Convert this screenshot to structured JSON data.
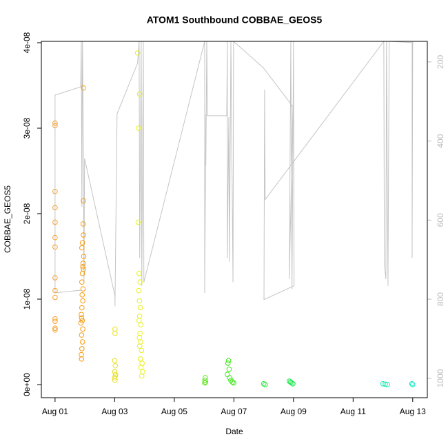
{
  "chart_data": {
    "type": "scatter",
    "title": "ATOM1 Southbound COBBAE_GEOS5",
    "xlabel": "Date",
    "ylabel": "COBBAE_GEOS5",
    "xlim": [
      0.54,
      13.49
    ],
    "xticks": [
      {
        "value": 1,
        "label": "Aug 01"
      },
      {
        "value": 3,
        "label": "Aug 03"
      },
      {
        "value": 5,
        "label": "Aug 05"
      },
      {
        "value": 7,
        "label": "Aug 07"
      },
      {
        "value": 9,
        "label": "Aug 09"
      },
      {
        "value": 11,
        "label": "Aug 11"
      },
      {
        "value": 13,
        "label": "Aug 13"
      }
    ],
    "ylim": [
      -1.53e-09,
      4.016e-08
    ],
    "yticks": [
      {
        "value": 0,
        "label": "0e+00"
      },
      {
        "value": 1e-08,
        "label": "1e-08"
      },
      {
        "value": 2e-08,
        "label": "2e-08"
      },
      {
        "value": 3e-08,
        "label": "3e-08"
      },
      {
        "value": 4e-08,
        "label": "4e-08"
      }
    ],
    "y2lim": [
      1049,
      148
    ],
    "y2ticks": [
      200,
      400,
      600,
      800,
      1000
    ],
    "series": [
      {
        "type": "line",
        "axis": "y2",
        "color": "#c4c4c4",
        "x": [
          1.88,
          1.0,
          1.0,
          1.86,
          1.88,
          1.9,
          1.92,
          1.95,
          1.97,
          1.99,
          3.01,
          3.01,
          3.08,
          3.77,
          3.82,
          3.84,
          3.89,
          3.91,
          3.96,
          3.98,
          6.02,
          6.02,
          6.06,
          6.06,
          6.09,
          6.11,
          6.76,
          6.78,
          6.78,
          6.83,
          6.85,
          6.9,
          6.97,
          6.99,
          7.98,
          8.98,
          8.86,
          8.91,
          8.95,
          9.0,
          9.02,
          8.01,
          8.03,
          8.05,
          12.03,
          12.05,
          12.1,
          12.12,
          12.17,
          12.21,
          12.98,
          12.98,
          13.0
        ],
        "values": [
          777,
          784,
          284,
          263,
          148,
          566,
          148,
          418,
          757,
          444,
          792,
          818,
          331,
          203,
          148,
          696,
          148,
          766,
          148,
          757,
          148,
          784,
          331,
          461,
          148,
          336,
          336,
          148,
          696,
          339,
          705,
          148,
          757,
          148,
          214,
          313,
          749,
          148,
          775,
          148,
          766,
          801,
          270,
          548,
          148,
          714,
          749,
          148,
          766,
          148,
          151,
          696,
          148
        ]
      },
      {
        "color": "#f5a030",
        "x": [
          1,
          1,
          1,
          1,
          1,
          1,
          1,
          1,
          1,
          1,
          1,
          1,
          1,
          1
        ],
        "values": [
          3.06e-08,
          3.03e-08,
          2.26e-08,
          2.07e-08,
          1.9e-08,
          1.72e-08,
          1.61e-08,
          1.25e-08,
          1.1e-08,
          1.02e-08,
          7.7e-09,
          7.4e-09,
          6.6e-09,
          6.4e-09
        ]
      },
      {
        "color": "#f59a10",
        "x": [
          1.95,
          1.95,
          1.94,
          1.95,
          1.92,
          1.9,
          1.96,
          1.94,
          1.93,
          1.95,
          1.92,
          1.9,
          1.94,
          1.91,
          1.93,
          1.9,
          1.88,
          1.89,
          1.91,
          1.87,
          1.93,
          1.89,
          1.92,
          1.9,
          1.88,
          1.89
        ],
        "values": [
          3.47e-08,
          2.15e-08,
          1.88e-08,
          1.75e-08,
          1.66e-08,
          1.6e-08,
          1.5e-08,
          1.42e-08,
          1.38e-08,
          1.35e-08,
          1.3e-08,
          1.2e-08,
          1.12e-08,
          1.05e-08,
          9.8e-09,
          9e-09,
          8.2e-09,
          7.8e-09,
          7.5e-09,
          7.2e-09,
          6.5e-09,
          5.8e-09,
          5e-09,
          4.2e-09,
          3.5e-09,
          3e-09
        ]
      },
      {
        "color": "#e8e020",
        "x": [
          3.01,
          3.01,
          3.0,
          3.02,
          3.0,
          3.03,
          3.02,
          3.0,
          3.01
        ],
        "values": [
          6.5e-09,
          6e-09,
          2.8e-09,
          2.2e-09,
          1.5e-09,
          1.2e-09,
          1e-09,
          8e-10,
          5e-10
        ]
      },
      {
        "color": "#e8f018",
        "x": [
          3.77,
          3.84,
          3.8,
          3.79,
          3.82,
          3.85,
          3.81,
          3.83,
          3.86,
          3.84,
          3.82,
          3.88,
          3.85,
          3.83,
          3.87,
          3.84,
          3.9,
          3.86,
          3.92,
          3.88,
          3.94,
          3.91
        ],
        "values": [
          3.88e-08,
          3.4e-08,
          3e-08,
          1.9e-08,
          1.3e-08,
          1.2e-08,
          1.1e-08,
          9.8e-09,
          9e-09,
          8e-09,
          7.5e-09,
          7e-09,
          6e-09,
          5.5e-09,
          5e-09,
          4.5e-09,
          4e-09,
          3e-09,
          2.5e-09,
          2e-09,
          1.5e-09,
          1e-09
        ]
      },
      {
        "color": "#5ce81a",
        "x": [
          6.04,
          6.03,
          6.05,
          6.02
        ],
        "values": [
          8e-10,
          5e-10,
          3e-10,
          2e-10
        ]
      },
      {
        "color": "#3ee81a",
        "x": [
          6.82,
          6.8,
          6.84,
          6.78,
          6.86,
          6.9,
          6.95,
          6.99
        ],
        "values": [
          2.8e-09,
          2.5e-09,
          1.8e-09,
          1.2e-09,
          8e-10,
          5e-10,
          3e-10,
          2e-10
        ]
      },
      {
        "color": "#20e830",
        "x": [
          8.0,
          8.05
        ],
        "values": [
          1e-10,
          0
        ]
      },
      {
        "color": "#18e848",
        "x": [
          8.86,
          8.9,
          8.94,
          8.98
        ],
        "values": [
          4e-10,
          3e-10,
          2e-10,
          1e-10
        ]
      },
      {
        "color": "#10eab0",
        "x": [
          12.0,
          12.08,
          12.15
        ],
        "values": [
          1e-10,
          5e-11,
          0
        ]
      },
      {
        "color": "#10eac0",
        "x": [
          12.97,
          13.0
        ],
        "values": [
          1e-10,
          0
        ]
      }
    ]
  }
}
